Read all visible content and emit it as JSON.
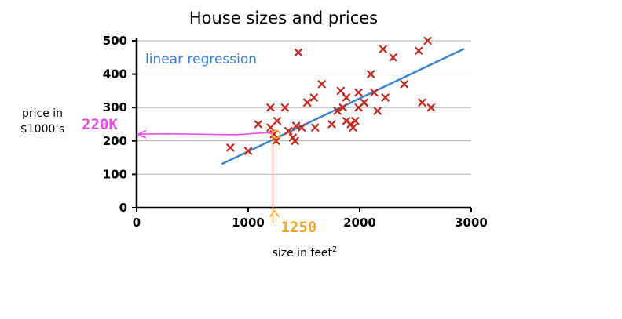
{
  "chart_data": {
    "type": "scatter",
    "title": "House sizes and prices",
    "xlabel": "size in feet",
    "xlabel_sup": "2",
    "ylabel_line1": "price in",
    "ylabel_line2": "$1000’s",
    "xlim": [
      0,
      3000
    ],
    "ylim": [
      0,
      500
    ],
    "xticks": [
      0,
      1000,
      2000,
      3000
    ],
    "yticks": [
      0,
      100,
      200,
      300,
      400,
      500
    ],
    "grid": true,
    "points": [
      {
        "x": 840,
        "y": 180
      },
      {
        "x": 1000,
        "y": 170
      },
      {
        "x": 1090,
        "y": 250
      },
      {
        "x": 1200,
        "y": 300
      },
      {
        "x": 1200,
        "y": 240
      },
      {
        "x": 1230,
        "y": 220
      },
      {
        "x": 1250,
        "y": 200
      },
      {
        "x": 1260,
        "y": 260
      },
      {
        "x": 1330,
        "y": 300
      },
      {
        "x": 1360,
        "y": 230
      },
      {
        "x": 1400,
        "y": 210
      },
      {
        "x": 1420,
        "y": 200
      },
      {
        "x": 1430,
        "y": 245
      },
      {
        "x": 1450,
        "y": 465
      },
      {
        "x": 1480,
        "y": 240
      },
      {
        "x": 1530,
        "y": 315
      },
      {
        "x": 1590,
        "y": 330
      },
      {
        "x": 1600,
        "y": 240
      },
      {
        "x": 1660,
        "y": 370
      },
      {
        "x": 1750,
        "y": 250
      },
      {
        "x": 1800,
        "y": 290
      },
      {
        "x": 1830,
        "y": 350
      },
      {
        "x": 1850,
        "y": 300
      },
      {
        "x": 1880,
        "y": 260
      },
      {
        "x": 1880,
        "y": 330
      },
      {
        "x": 1920,
        "y": 250
      },
      {
        "x": 1940,
        "y": 240
      },
      {
        "x": 1960,
        "y": 260
      },
      {
        "x": 1990,
        "y": 300
      },
      {
        "x": 1990,
        "y": 345
      },
      {
        "x": 2040,
        "y": 315
      },
      {
        "x": 2100,
        "y": 400
      },
      {
        "x": 2130,
        "y": 345
      },
      {
        "x": 2160,
        "y": 290
      },
      {
        "x": 2210,
        "y": 475
      },
      {
        "x": 2230,
        "y": 330
      },
      {
        "x": 2300,
        "y": 450
      },
      {
        "x": 2400,
        "y": 370
      },
      {
        "x": 2530,
        "y": 470
      },
      {
        "x": 2560,
        "y": 315
      },
      {
        "x": 2610,
        "y": 500
      },
      {
        "x": 2640,
        "y": 300
      }
    ],
    "regression_line": {
      "label": "linear regression",
      "x": [
        770,
        2930
      ],
      "y": [
        132,
        475
      ]
    },
    "annotation": {
      "x": 1250,
      "y": 220,
      "x_label": "1250",
      "y_label": "220K"
    },
    "colors": {
      "points": "#c0281e",
      "regression": "#3c82d2",
      "annotation_y": "#e94be4",
      "annotation_x": "#f4a72e",
      "grid": "#b4b4b4"
    }
  }
}
